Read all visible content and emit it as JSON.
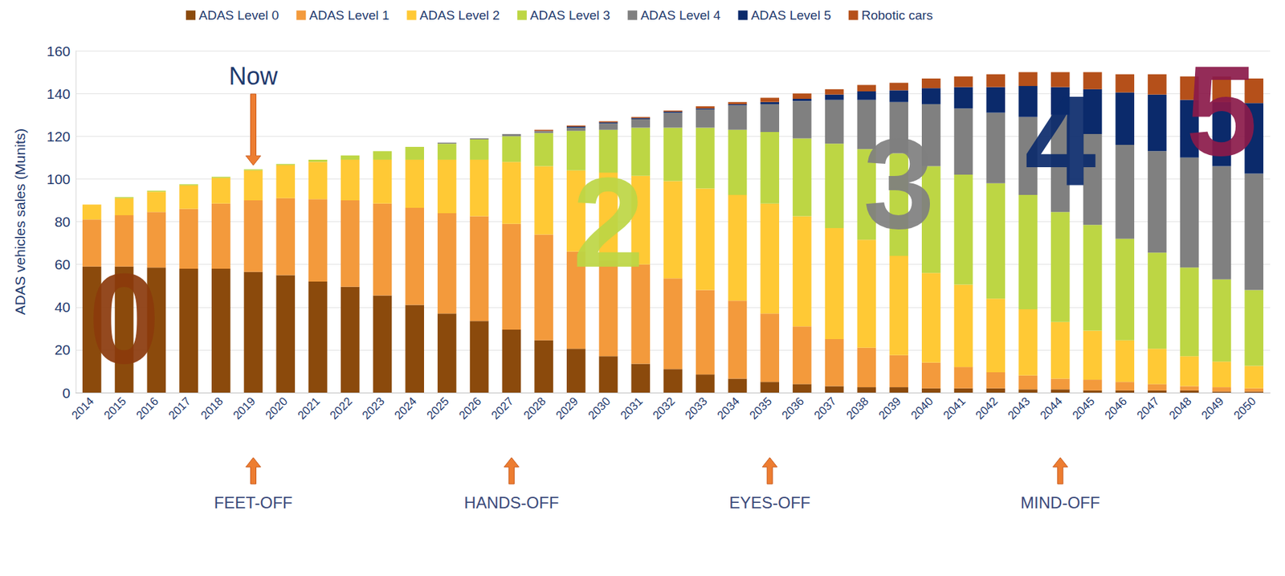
{
  "chart_data": {
    "type": "bar",
    "stacked": true,
    "grid": true,
    "legend": "top",
    "y_label": "ADAS vehicles sales (Munits)",
    "ylim": [
      0,
      160
    ],
    "yticks": [
      0,
      20,
      40,
      60,
      80,
      100,
      120,
      140,
      160
    ],
    "categories": [
      "2014",
      "2015",
      "2016",
      "2017",
      "2018",
      "2019",
      "2020",
      "2021",
      "2022",
      "2023",
      "2024",
      "2025",
      "2026",
      "2027",
      "2028",
      "2029",
      "2030",
      "2031",
      "2032",
      "2033",
      "2034",
      "2035",
      "2036",
      "2037",
      "2038",
      "2039",
      "2040",
      "2041",
      "2042",
      "2043",
      "2044",
      "2045",
      "2046",
      "2047",
      "2048",
      "2049",
      "2050"
    ],
    "series": [
      {
        "name": "ADAS Level 0",
        "color": "#8b4a0c",
        "values": [
          59,
          59,
          58.5,
          58,
          58,
          56.5,
          55,
          52,
          49.5,
          45.5,
          41,
          37,
          33.5,
          29.5,
          24.5,
          20.5,
          17,
          13.5,
          11,
          8.5,
          6.5,
          5,
          4,
          3,
          2.5,
          2.5,
          2,
          2,
          2,
          1.5,
          1.5,
          1,
          1,
          1,
          1,
          0.5,
          0.5
        ]
      },
      {
        "name": "ADAS Level 1",
        "color": "#f39a3c",
        "values": [
          22,
          24,
          26,
          28,
          30.5,
          33.5,
          36,
          38.5,
          40.5,
          43,
          45.5,
          47,
          49,
          49.5,
          49.5,
          45.5,
          45,
          46.5,
          42.5,
          39.5,
          36.5,
          32,
          27,
          22,
          18.5,
          15,
          12,
          10,
          7.5,
          6.5,
          5,
          5,
          4,
          3,
          2,
          2,
          1.5
        ]
      },
      {
        "name": "ADAS Level 2",
        "color": "#ffc935",
        "values": [
          7,
          8,
          9.5,
          11,
          12,
          14,
          15.5,
          17.5,
          19,
          20.5,
          22.5,
          25,
          26.5,
          29,
          32,
          38,
          41,
          41.5,
          45.5,
          47.5,
          49.5,
          51.5,
          51.5,
          52,
          50.5,
          46.5,
          42,
          38.5,
          34.5,
          31,
          26.5,
          23,
          19.5,
          16.5,
          14,
          12,
          10.5
        ]
      },
      {
        "name": "ADAS Level 3",
        "color": "#bdd644",
        "values": [
          0,
          0.5,
          0.5,
          0.5,
          0.5,
          0.5,
          0.5,
          1,
          2,
          4,
          6,
          7.5,
          9.5,
          12,
          15.5,
          18.5,
          20,
          22.5,
          25,
          28.5,
          30.5,
          33.5,
          36.5,
          39.5,
          42.5,
          48,
          50,
          51.5,
          54,
          53.5,
          51.5,
          49.5,
          47.5,
          45,
          41.5,
          38.5,
          35.5
        ]
      },
      {
        "name": "ADAS Level 4",
        "color": "#808080",
        "values": [
          0,
          0,
          0,
          0,
          0,
          0,
          0,
          0,
          0,
          0,
          0,
          0.5,
          0.5,
          1,
          1,
          1.5,
          3,
          4,
          7,
          8.5,
          11.5,
          13,
          17.5,
          20.5,
          23,
          24,
          29,
          31,
          33,
          36.5,
          45.5,
          42.5,
          44,
          47.5,
          51.5,
          53,
          54.5
        ]
      },
      {
        "name": "ADAS Level 5",
        "color": "#0b2a6b",
        "values": [
          0,
          0,
          0,
          0,
          0,
          0,
          0,
          0,
          0,
          0,
          0,
          0,
          0,
          0,
          0,
          0.5,
          0.5,
          0.5,
          0.5,
          0.5,
          0.5,
          1,
          1,
          2.5,
          4,
          5.5,
          7.5,
          10,
          12,
          14.5,
          13,
          21,
          24.5,
          26.5,
          27,
          30,
          33
        ]
      },
      {
        "name": "Robotic cars",
        "color": "#b5501a",
        "values": [
          0,
          0,
          0,
          0,
          0,
          0,
          0,
          0,
          0,
          0,
          0,
          0,
          0,
          0,
          0.5,
          0.5,
          0.5,
          0.5,
          0.5,
          1,
          1,
          2,
          2.5,
          2.5,
          3,
          3.5,
          4.5,
          5,
          6,
          6.5,
          7,
          8,
          8.5,
          9.5,
          11,
          12,
          11.5
        ]
      }
    ],
    "annotations": [
      {
        "text": "Now",
        "x": "2019",
        "y": 148,
        "color": "#1f3a6e"
      }
    ],
    "big_labels": [
      {
        "text": "0",
        "x": "2015",
        "y": 35,
        "color": "#8b3a0c"
      },
      {
        "text": "2",
        "x": "2030",
        "y": 80,
        "color": "#bdd644"
      },
      {
        "text": "3",
        "x": "2039",
        "y": 98,
        "color": "#7f7f7f"
      },
      {
        "text": "4",
        "x": "2044",
        "y": 118,
        "color": "#0b2a6b"
      },
      {
        "text": "5",
        "x": "2049",
        "y": 132,
        "color": "#8b1a4a"
      }
    ],
    "milestones": [
      {
        "text": "FEET-OFF",
        "x": "2019"
      },
      {
        "text": "HANDS-OFF",
        "x": "2027"
      },
      {
        "text": "EYES-OFF",
        "x": "2035"
      },
      {
        "text": "MIND-OFF",
        "x": "2044"
      }
    ]
  }
}
